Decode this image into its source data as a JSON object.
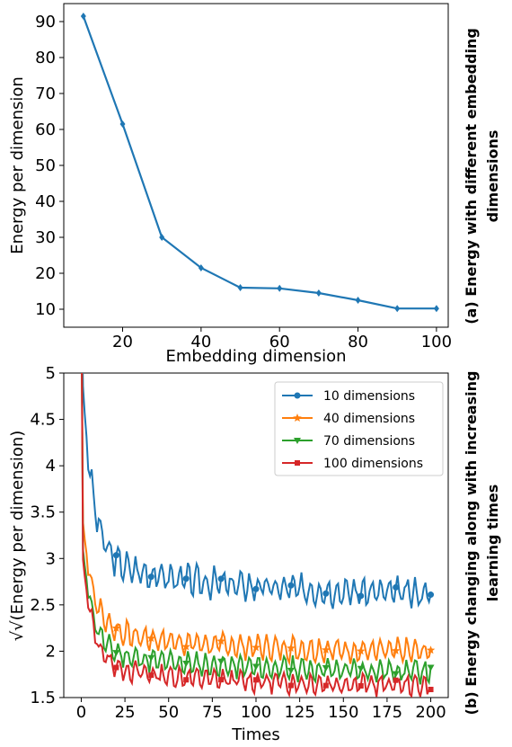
{
  "chart_data": [
    {
      "type": "line",
      "xlabel": "Embedding dimension",
      "ylabel": "Energy per dimension",
      "caption_line1": "(a) Energy with different embedding",
      "caption_line2": "dimensions",
      "xlim": [
        5,
        103
      ],
      "ylim": [
        5,
        95
      ],
      "xticks": [
        20,
        40,
        60,
        80,
        100
      ],
      "yticks": [
        10,
        20,
        30,
        40,
        50,
        60,
        70,
        80,
        90
      ],
      "grid": false,
      "color": "#1f77b4",
      "marker": "diamond",
      "x": [
        10,
        20,
        30,
        40,
        50,
        60,
        70,
        80,
        90,
        100
      ],
      "y": [
        91.5,
        61.5,
        30,
        21.5,
        16,
        15.8,
        14.5,
        12.5,
        10.2,
        10.2
      ]
    },
    {
      "type": "line",
      "xlabel": "Times",
      "ylabel": "√√(Energy per dimension)",
      "caption_line1": "(b) Energy changing along with increasing",
      "caption_line2": "learning times",
      "xlim": [
        -10,
        210
      ],
      "ylim": [
        1.5,
        5.0
      ],
      "xticks": [
        0,
        25,
        50,
        75,
        100,
        125,
        150,
        175,
        200
      ],
      "yticks": [
        1.5,
        2.0,
        2.5,
        3.0,
        3.5,
        4.0,
        4.5,
        5.0
      ],
      "grid": false,
      "legend_position": "top-right",
      "series": [
        {
          "name": "10 dimensions",
          "color": "#1f77b4",
          "marker": "circle",
          "start": 5.2,
          "mid": 3.0,
          "end": 2.6,
          "amp": 0.13,
          "period": 5,
          "noise_seed": 3,
          "noise": 0.07
        },
        {
          "name": "40 dimensions",
          "color": "#ff7f0e",
          "marker": "star",
          "start": 3.6,
          "mid": 2.25,
          "end": 1.98,
          "amp": 0.11,
          "period": 5,
          "noise_seed": 7,
          "noise": 0.05
        },
        {
          "name": "70 dimensions",
          "color": "#2ca02c",
          "marker": "triangle-down",
          "start": 3.3,
          "mid": 2.0,
          "end": 1.77,
          "amp": 0.1,
          "period": 5,
          "noise_seed": 11,
          "noise": 0.05
        },
        {
          "name": "100 dimensions",
          "color": "#d62728",
          "marker": "square",
          "start": 3.2,
          "mid": 1.85,
          "end": 1.62,
          "amp": 0.09,
          "period": 5,
          "noise_seed": 13,
          "noise": 0.05
        }
      ]
    }
  ]
}
